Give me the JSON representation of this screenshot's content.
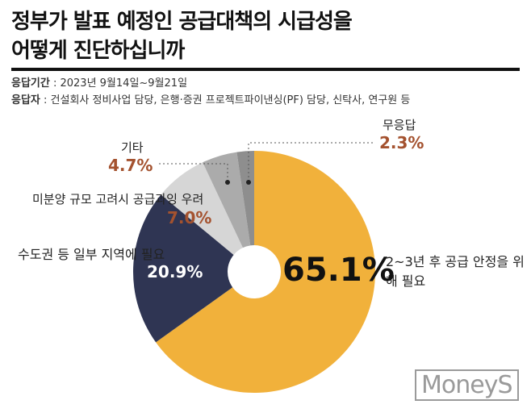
{
  "chart_data": {
    "type": "pie",
    "title": [
      "정부가 발표 예정인 공급대책의 시급성을",
      "어떻게 진단하십니까"
    ],
    "period_label": "응답기간",
    "period": " : 2023년 9월14일~9월21일",
    "respondents_label": "응답자",
    "respondents": " : 건설회사 정비사업 담당, 은행·증권 프로젝트파이낸싱(PF) 담당, 신탁사, 연구원 등",
    "categories": [
      "2~3년 후 공급 안정을 위해 필요",
      "수도권 등 일부 지역에 필요",
      "미분양 규모 고려시 공급과잉 우려",
      "기타",
      "무응답"
    ],
    "values": [
      65.1,
      20.9,
      7.0,
      4.7,
      2.3
    ],
    "value_labels": [
      "65.1%",
      "20.9%",
      "7.0%",
      "4.7%",
      "2.3%"
    ],
    "colors": [
      "#f1b13b",
      "#2f3553",
      "#d6d6d6",
      "#ababab",
      "#8e8e8e"
    ],
    "source_logo": "MoneyS"
  }
}
